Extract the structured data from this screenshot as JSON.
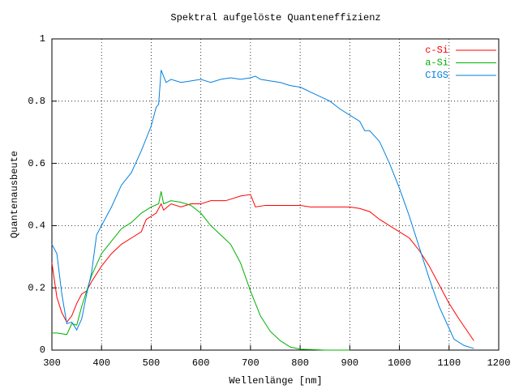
{
  "chart_data": {
    "type": "line",
    "title": "Spektral aufgelöste Quanteneffizienz",
    "x_label": "Wellenlänge [nm]",
    "y_label": "Quantenausbeute",
    "xlim": [
      300,
      1200
    ],
    "xticks": [
      300,
      400,
      500,
      600,
      700,
      800,
      900,
      1000,
      1100,
      1200
    ],
    "ylim": [
      0,
      1
    ],
    "yticks": [
      0,
      0.2,
      0.4,
      0.6,
      0.8,
      1
    ],
    "grid": true,
    "legend": "top-right",
    "series": [
      {
        "name": "c-Si",
        "color": "#ff0000",
        "x": [
          300,
          310,
          320,
          330,
          340,
          350,
          360,
          370,
          380,
          400,
          420,
          440,
          460,
          480,
          490,
          510,
          520,
          525,
          540,
          560,
          580,
          600,
          620,
          650,
          680,
          700,
          710,
          730,
          760,
          800,
          820,
          850,
          880,
          900,
          920,
          940,
          960,
          980,
          1000,
          1020,
          1040,
          1060,
          1080,
          1100,
          1120,
          1150
        ],
        "values": [
          0.28,
          0.17,
          0.12,
          0.09,
          0.11,
          0.15,
          0.18,
          0.19,
          0.22,
          0.27,
          0.31,
          0.34,
          0.36,
          0.38,
          0.42,
          0.44,
          0.47,
          0.45,
          0.47,
          0.46,
          0.47,
          0.47,
          0.48,
          0.48,
          0.495,
          0.5,
          0.46,
          0.465,
          0.465,
          0.465,
          0.46,
          0.46,
          0.46,
          0.46,
          0.455,
          0.445,
          0.42,
          0.4,
          0.38,
          0.36,
          0.32,
          0.27,
          0.21,
          0.15,
          0.1,
          0.03
        ]
      },
      {
        "name": "a-Si",
        "color": "#00b000",
        "x": [
          300,
          310,
          330,
          340,
          350,
          360,
          370,
          380,
          400,
          420,
          440,
          460,
          480,
          500,
          515,
          520,
          525,
          540,
          560,
          580,
          600,
          620,
          640,
          660,
          680,
          700,
          720,
          740,
          760,
          780,
          800,
          820,
          850,
          900
        ],
        "values": [
          0.055,
          0.055,
          0.05,
          0.085,
          0.08,
          0.14,
          0.19,
          0.24,
          0.31,
          0.35,
          0.39,
          0.41,
          0.44,
          0.46,
          0.47,
          0.51,
          0.47,
          0.48,
          0.475,
          0.465,
          0.44,
          0.4,
          0.37,
          0.34,
          0.28,
          0.19,
          0.11,
          0.06,
          0.03,
          0.01,
          0.003,
          0.002,
          0,
          0
        ]
      },
      {
        "name": "CIGS",
        "color": "#0080e0",
        "x": [
          300,
          310,
          320,
          330,
          340,
          350,
          360,
          370,
          380,
          390,
          400,
          420,
          440,
          460,
          480,
          500,
          510,
          515,
          520,
          530,
          540,
          560,
          580,
          600,
          620,
          640,
          660,
          680,
          700,
          710,
          720,
          740,
          760,
          780,
          800,
          820,
          840,
          860,
          880,
          900,
          920,
          930,
          940,
          960,
          980,
          1000,
          1020,
          1040,
          1060,
          1080,
          1100,
          1110,
          1130,
          1150
        ],
        "values": [
          0.34,
          0.31,
          0.18,
          0.085,
          0.09,
          0.065,
          0.1,
          0.18,
          0.25,
          0.37,
          0.4,
          0.46,
          0.53,
          0.57,
          0.64,
          0.72,
          0.78,
          0.79,
          0.9,
          0.86,
          0.87,
          0.86,
          0.865,
          0.87,
          0.86,
          0.87,
          0.875,
          0.87,
          0.875,
          0.88,
          0.87,
          0.865,
          0.86,
          0.85,
          0.845,
          0.83,
          0.815,
          0.8,
          0.775,
          0.755,
          0.735,
          0.705,
          0.705,
          0.67,
          0.6,
          0.52,
          0.43,
          0.33,
          0.23,
          0.14,
          0.07,
          0.035,
          0.015,
          0.005
        ]
      }
    ]
  }
}
